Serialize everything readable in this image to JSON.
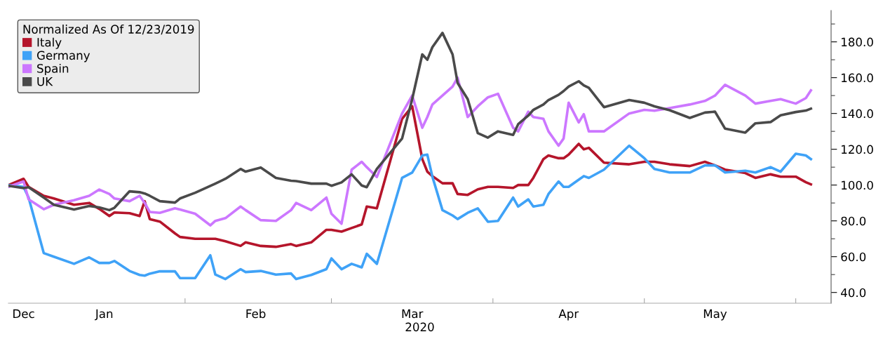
{
  "chart_data": {
    "type": "line",
    "legend_title": "Normalized As Of 12/23/2019",
    "xlabel": "2020",
    "x": [
      "2019-12-23",
      "2019-12-26",
      "2019-12-27",
      "2019-12-30",
      "2020-01-01",
      "2020-01-05",
      "2020-01-08",
      "2020-01-10",
      "2020-01-12",
      "2020-01-13",
      "2020-01-16",
      "2020-01-18",
      "2020-01-19",
      "2020-01-20",
      "2020-01-22",
      "2020-01-25",
      "2020-01-26",
      "2020-01-29",
      "2020-02-01",
      "2020-02-02",
      "2020-02-04",
      "2020-02-07",
      "2020-02-08",
      "2020-02-11",
      "2020-02-14",
      "2020-02-17",
      "2020-02-18",
      "2020-02-21",
      "2020-02-24",
      "2020-02-25",
      "2020-02-27",
      "2020-02-29",
      "2020-03-02",
      "2020-03-03",
      "2020-03-05",
      "2020-03-10",
      "2020-03-12",
      "2020-03-14",
      "2020-03-15",
      "2020-03-16",
      "2020-03-18",
      "2020-03-20",
      "2020-03-21",
      "2020-03-23",
      "2020-03-25",
      "2020-03-27",
      "2020-03-29",
      "2020-04-01",
      "2020-04-02",
      "2020-04-04",
      "2020-04-05",
      "2020-04-07",
      "2020-04-08",
      "2020-04-10",
      "2020-04-11",
      "2020-04-12",
      "2020-04-14",
      "2020-04-15",
      "2020-04-16",
      "2020-04-19",
      "2020-04-24",
      "2020-04-27",
      "2020-04-29",
      "2020-05-02",
      "2020-05-06",
      "2020-05-09",
      "2020-05-11",
      "2020-05-13",
      "2020-05-17",
      "2020-05-19",
      "2020-05-22",
      "2020-05-24",
      "2020-05-27",
      "2020-05-29",
      "2020-05-30"
    ],
    "series": [
      {
        "name": "Italy",
        "color": "#b5152b",
        "values": [
          100,
          103.5,
          99,
          94,
          92.5,
          89,
          90,
          86.7,
          82.7,
          84.7,
          84.3,
          82.7,
          91,
          81,
          79.6,
          73,
          71,
          70,
          70,
          70,
          68.6,
          66,
          68,
          66,
          65.5,
          67,
          66,
          68,
          75,
          75,
          74,
          76,
          78,
          88,
          87,
          137,
          144,
          114.5,
          107.5,
          105,
          101,
          101,
          95,
          94.5,
          97.6,
          99,
          99,
          98.4,
          100,
          100,
          104,
          114.5,
          116.5,
          115,
          115,
          117,
          123,
          120,
          120.8,
          112.5,
          111.6,
          113,
          113,
          111.6,
          110.6,
          113,
          111,
          108.6,
          106.7,
          104,
          106,
          104.7,
          104.7,
          101.6,
          100.4
        ]
      },
      {
        "name": "Germany",
        "color": "#3fa2f7",
        "values": [
          100,
          99,
          93,
          62,
          60,
          56,
          59.6,
          56.5,
          56.5,
          57.6,
          52,
          49.8,
          49.4,
          50.5,
          51.8,
          51.8,
          48,
          48,
          60.8,
          50,
          47.5,
          53,
          51.4,
          52,
          50,
          50.6,
          47.5,
          49.8,
          53,
          59,
          53,
          56,
          54,
          61.6,
          56,
          104,
          107,
          116.5,
          117,
          104.7,
          86,
          83,
          81,
          84.5,
          87,
          79.5,
          80,
          93,
          88,
          92,
          88,
          89,
          95,
          102,
          99,
          99,
          103,
          105,
          104,
          108.6,
          122,
          115,
          109,
          107,
          107,
          111,
          111,
          107,
          108,
          107,
          110,
          107.5,
          117.5,
          116.5,
          114.5
        ]
      },
      {
        "name": "Spain",
        "color": "#cc77ff",
        "values": [
          99,
          102,
          92,
          86.5,
          89,
          91.5,
          94,
          97.5,
          95,
          92.5,
          91,
          94,
          90,
          85,
          84.5,
          87,
          86.3,
          84,
          77.5,
          80,
          81.5,
          88,
          86,
          80.4,
          80,
          86,
          90,
          86,
          93,
          84,
          78.4,
          108.6,
          113,
          110,
          104.5,
          140,
          150,
          132,
          138,
          145,
          150,
          155,
          160,
          138,
          144,
          149,
          151,
          132,
          130,
          141,
          138,
          137,
          130,
          122,
          126,
          146,
          135,
          139.6,
          130,
          130,
          140,
          142,
          141.5,
          143,
          145,
          147,
          150,
          156,
          150,
          145.5,
          147,
          148,
          145.5,
          148.6,
          152.9
        ]
      },
      {
        "name": "UK",
        "color": "#4a4a4a",
        "values": [
          99.6,
          98.3,
          98.8,
          93,
          89,
          86.3,
          88.3,
          87.5,
          86,
          87.3,
          96.5,
          96,
          95.3,
          94,
          91,
          90.2,
          92.5,
          95.7,
          99.5,
          100.8,
          103.5,
          109,
          107.5,
          109.8,
          104,
          102.4,
          102.2,
          100.8,
          100.8,
          99.6,
          101.5,
          106,
          99.8,
          98.8,
          109,
          126,
          148,
          173,
          170,
          177,
          185,
          173,
          157,
          148,
          129,
          126.5,
          130,
          128,
          134,
          138.8,
          142,
          145,
          147.5,
          150.4,
          152.5,
          155,
          158,
          155.7,
          154.3,
          143.5,
          147.5,
          146,
          144,
          141.8,
          137.5,
          140.5,
          141,
          131.5,
          129.3,
          134.5,
          135.2,
          139,
          140.8,
          141.6,
          142.7
        ]
      }
    ],
    "xlim": [
      "2019-12-23",
      "2020-06-03"
    ],
    "xticks": [
      {
        "value": "2019-12-26",
        "label": "Dec"
      },
      {
        "value": "2020-01-11",
        "label": "Jan"
      },
      {
        "value": "2020-02-10",
        "label": "Feb"
      },
      {
        "value": "2020-03-12",
        "label": "Mar"
      },
      {
        "value": "2020-04-12",
        "label": "Apr"
      },
      {
        "value": "2020-05-11",
        "label": "May"
      },
      {
        "value": "2020-01-27",
        "label": null
      },
      {
        "value": "2020-02-25",
        "label": null
      },
      {
        "value": "2020-03-28",
        "label": null
      },
      {
        "value": "2020-04-27",
        "label": null
      },
      {
        "value": "2020-05-27",
        "label": null
      }
    ],
    "ylim": [
      34,
      197.5
    ],
    "yticks": [
      {
        "value": 40,
        "label": "40.0"
      },
      {
        "value": 50,
        "label": null
      },
      {
        "value": 60,
        "label": "60.0"
      },
      {
        "value": 70,
        "label": null
      },
      {
        "value": 80,
        "label": "80.0"
      },
      {
        "value": 90,
        "label": null
      },
      {
        "value": 100,
        "label": "100.0"
      },
      {
        "value": 110,
        "label": null
      },
      {
        "value": 120,
        "label": "120.0"
      },
      {
        "value": 130,
        "label": null
      },
      {
        "value": 140,
        "label": "140.0"
      },
      {
        "value": 150,
        "label": null
      },
      {
        "value": 160,
        "label": "160.0"
      },
      {
        "value": 170,
        "label": null
      },
      {
        "value": 180,
        "label": "180.0"
      },
      {
        "value": 190,
        "label": null
      }
    ],
    "grid": false,
    "legend": "top left",
    "marker": "none",
    "line_style": "solid"
  }
}
